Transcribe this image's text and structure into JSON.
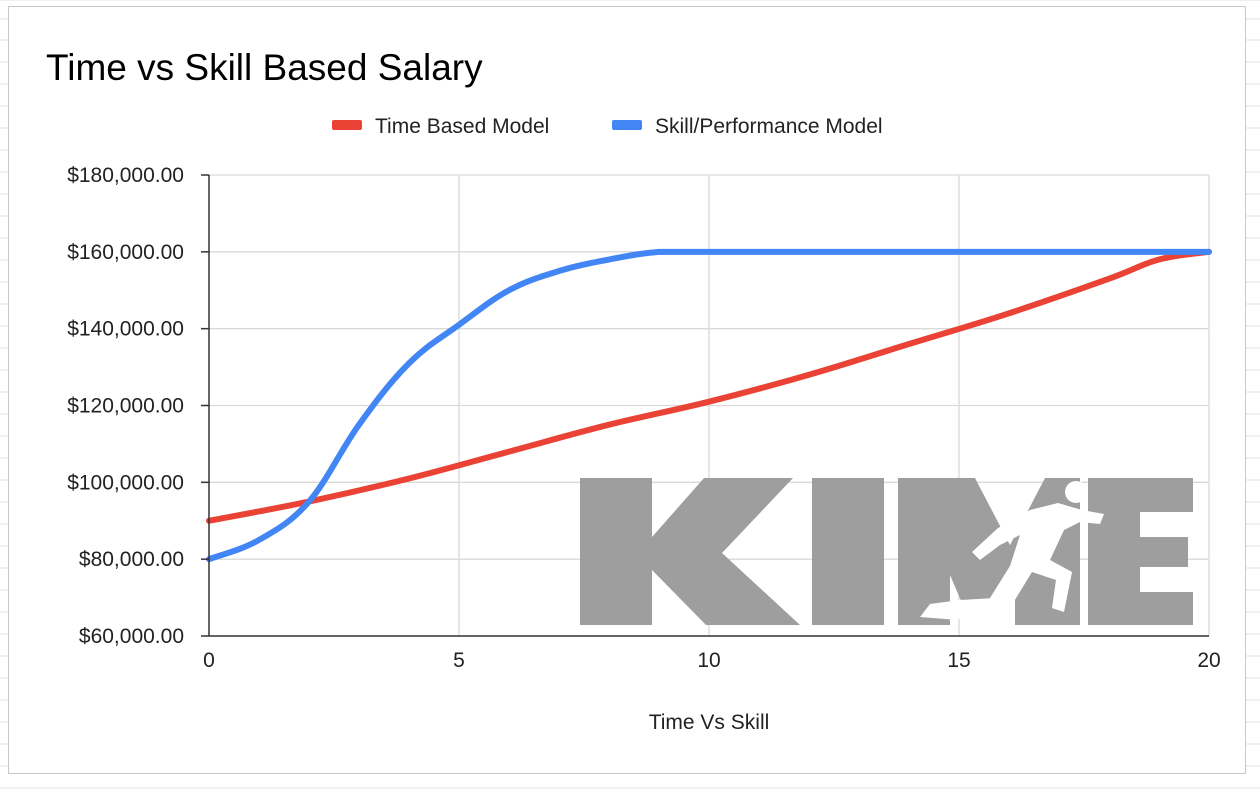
{
  "chart_data": {
    "type": "line",
    "title": "Time vs Skill Based Salary",
    "xlabel": "Time Vs Skill",
    "ylabel": "",
    "xlim": [
      0,
      20
    ],
    "ylim": [
      60000,
      180000
    ],
    "x_ticks": [
      0,
      5,
      10,
      15,
      20
    ],
    "x_tick_labels": [
      "0",
      "5",
      "10",
      "15",
      "20"
    ],
    "y_ticks": [
      60000,
      80000,
      100000,
      120000,
      140000,
      160000,
      180000
    ],
    "y_tick_labels": [
      "$60,000.00",
      "$80,000.00",
      "$100,000.00",
      "$120,000.00",
      "$140,000.00",
      "$160,000.00",
      "$180,000.00"
    ],
    "grid": true,
    "legend_position": "top",
    "series": [
      {
        "name": "Time Based Model",
        "color": "#ea4335",
        "x": [
          0,
          2,
          4,
          6,
          8,
          10,
          12,
          14,
          16,
          18,
          19,
          20
        ],
        "y": [
          90000,
          95000,
          101000,
          108000,
          115000,
          121000,
          128000,
          136000,
          144000,
          153000,
          158000,
          160000
        ]
      },
      {
        "name": "Skill/Performance Model",
        "color": "#4285f4",
        "x": [
          0,
          1,
          2,
          3,
          4,
          5,
          6,
          7,
          8,
          9,
          10,
          12,
          14,
          16,
          18,
          20
        ],
        "y": [
          80000,
          85000,
          95000,
          115000,
          131000,
          141000,
          150000,
          155000,
          158000,
          160000,
          160000,
          160000,
          160000,
          160000,
          160000,
          160000
        ]
      }
    ]
  },
  "watermark": {
    "text": "KIME",
    "color": "#9e9e9e"
  },
  "colors": {
    "gridline": "#d9d9d9",
    "axis": "#333333",
    "frame": "#c8c8c8"
  }
}
